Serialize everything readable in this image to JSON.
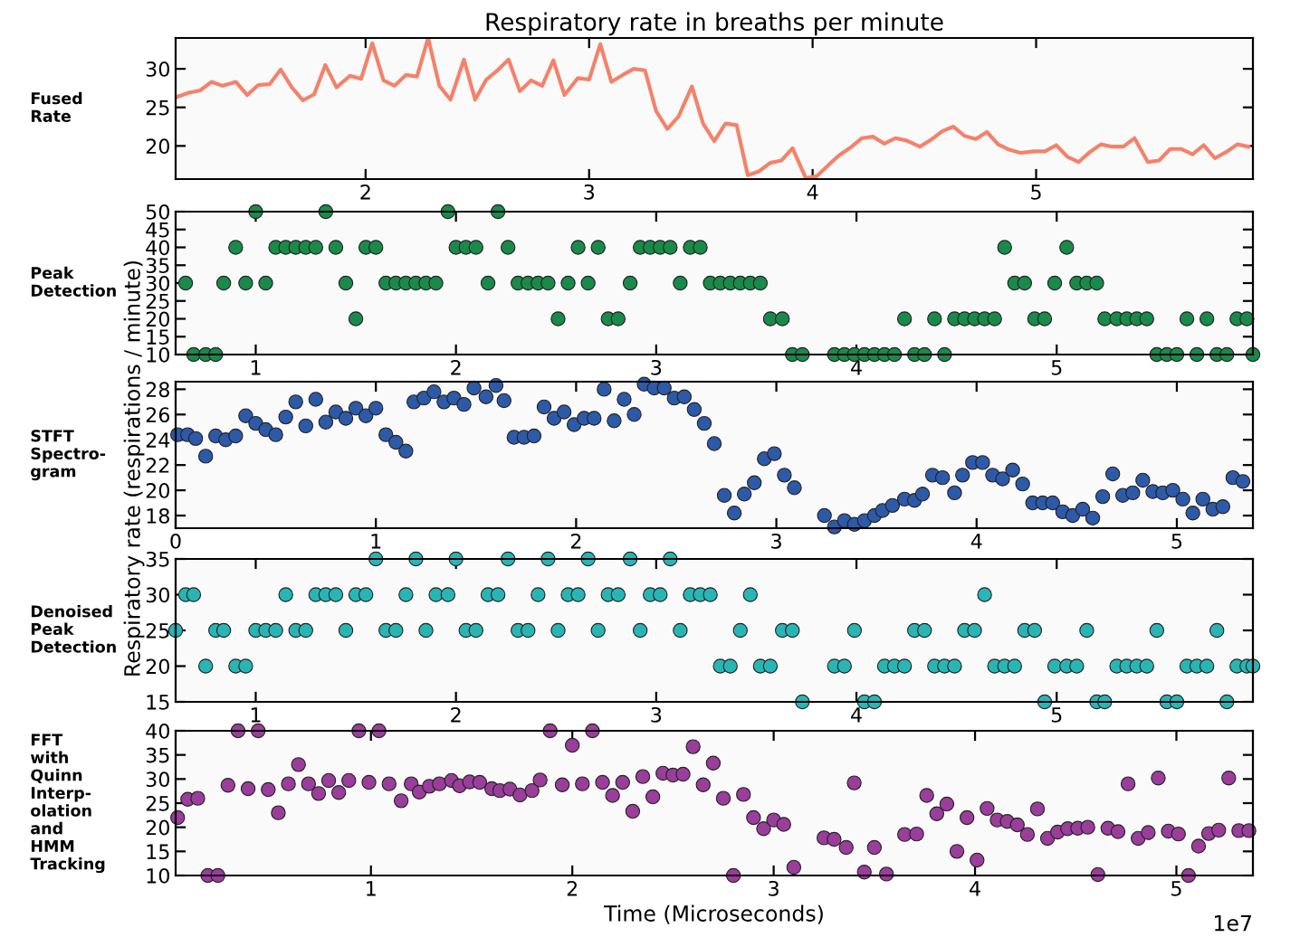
{
  "chart_data": [
    {
      "type": "line",
      "title": "Respiratory rate in breaths per minute",
      "annotations": [
        "Fused\nRate"
      ],
      "color": "#f4826b",
      "marker": "none",
      "line_style": "solid",
      "grid": false,
      "legend": false,
      "x": [
        1.16,
        1.21,
        1.26,
        1.31,
        1.36,
        1.42,
        1.47,
        1.52,
        1.57,
        1.62,
        1.67,
        1.72,
        1.77,
        1.82,
        1.87,
        1.93,
        1.98,
        2.03,
        2.08,
        2.13,
        2.18,
        2.23,
        2.28,
        2.33,
        2.38,
        2.44,
        2.49,
        2.54,
        2.59,
        2.64,
        2.69,
        2.74,
        2.79,
        2.84,
        2.89,
        2.95,
        3.0,
        3.05,
        3.1,
        3.15,
        3.2,
        3.25,
        3.3,
        3.35,
        3.4,
        3.46,
        3.51,
        3.56,
        3.61,
        3.66,
        3.71,
        3.76,
        3.81,
        3.86,
        3.91,
        3.97,
        4.02,
        4.07,
        4.12,
        4.17,
        4.22,
        4.27,
        4.32,
        4.37,
        4.42,
        4.48,
        4.53,
        4.58,
        4.63,
        4.68,
        4.73,
        4.78,
        4.83,
        4.88,
        4.93,
        4.99,
        5.04,
        5.09,
        5.14,
        5.19,
        5.24,
        5.29,
        5.34,
        5.39,
        5.44,
        5.5,
        5.55,
        5.6,
        5.65,
        5.7,
        5.75,
        5.8,
        5.85,
        5.9,
        5.95
      ],
      "values": [
        26.4,
        26.9,
        27.2,
        28.3,
        27.8,
        28.3,
        26.6,
        27.9,
        28.0,
        29.9,
        27.6,
        25.9,
        26.7,
        30.5,
        27.6,
        29.1,
        28.7,
        33.3,
        28.5,
        27.8,
        29.2,
        29.0,
        34.0,
        27.8,
        26.0,
        31.2,
        26.0,
        28.6,
        29.8,
        31.2,
        27.1,
        28.5,
        27.8,
        31.1,
        26.6,
        28.8,
        28.6,
        33.2,
        28.3,
        29.2,
        30.0,
        29.8,
        24.5,
        22.2,
        23.8,
        27.7,
        22.9,
        20.6,
        22.9,
        22.7,
        16.2,
        16.7,
        17.8,
        18.1,
        19.7,
        15.8,
        16.1,
        17.5,
        18.8,
        19.8,
        21.0,
        21.2,
        20.3,
        21.0,
        20.7,
        19.9,
        20.8,
        21.9,
        22.5,
        21.3,
        20.9,
        21.8,
        20.2,
        19.5,
        19.1,
        19.3,
        19.3,
        20.1,
        18.6,
        17.9,
        19.2,
        20.2,
        19.9,
        19.9,
        21.0,
        17.9,
        18.1,
        19.6,
        19.6,
        18.9,
        20.1,
        18.4,
        19.2,
        20.2,
        19.9
      ],
      "xlim": [
        1.15,
        5.97
      ],
      "ylim": [
        15.7,
        34
      ],
      "xticks": [
        2,
        3,
        4,
        5
      ],
      "yticks": [
        20,
        25,
        30
      ]
    },
    {
      "type": "scatter",
      "annotations": [
        "Peak\nDetection"
      ],
      "color": "#1a8a4a",
      "marker": "circle",
      "grid": false,
      "legend": false,
      "x": [
        0.65,
        0.69,
        0.75,
        0.8,
        0.84,
        0.9,
        0.95,
        1.0,
        1.05,
        1.1,
        1.15,
        1.2,
        1.25,
        1.3,
        1.35,
        1.4,
        1.45,
        1.5,
        1.55,
        1.6,
        1.65,
        1.7,
        1.75,
        1.8,
        1.85,
        1.9,
        1.96,
        2.0,
        2.05,
        2.1,
        2.16,
        2.21,
        2.26,
        2.31,
        2.36,
        2.41,
        2.46,
        2.51,
        2.56,
        2.61,
        2.66,
        2.71,
        2.76,
        2.81,
        2.87,
        2.92,
        2.97,
        3.02,
        3.07,
        3.12,
        3.17,
        3.22,
        3.27,
        3.32,
        3.37,
        3.42,
        3.47,
        3.52,
        3.57,
        3.63,
        3.68,
        3.73,
        3.89,
        3.94,
        3.99,
        4.04,
        4.09,
        4.14,
        4.19,
        4.24,
        4.29,
        4.34,
        4.39,
        4.44,
        4.49,
        4.54,
        4.59,
        4.64,
        4.69,
        4.74,
        4.79,
        4.84,
        4.89,
        4.94,
        4.99,
        5.05,
        5.1,
        5.15,
        5.2,
        5.24,
        5.3,
        5.35,
        5.4,
        5.45,
        5.5,
        5.55,
        5.6,
        5.65,
        5.7,
        5.75,
        5.8,
        5.85,
        5.9,
        5.95,
        5.98
      ],
      "values": [
        30,
        10,
        10,
        10,
        30,
        40,
        30,
        50,
        30,
        40,
        40,
        40,
        40,
        40,
        50,
        40,
        30,
        20,
        40,
        40,
        30,
        30,
        30,
        30,
        30,
        30,
        50,
        40,
        40,
        40,
        30,
        50,
        40,
        30,
        30,
        30,
        30,
        20,
        30,
        40,
        30,
        40,
        20,
        20,
        30,
        40,
        40,
        40,
        40,
        30,
        40,
        40,
        30,
        30,
        30,
        30,
        30,
        30,
        20,
        20,
        10,
        10,
        10,
        10,
        10,
        10,
        10,
        10,
        10,
        20,
        10,
        10,
        20,
        10,
        20,
        20,
        20,
        20,
        20,
        40,
        30,
        30,
        20,
        20,
        30,
        40,
        30,
        30,
        30,
        20,
        20,
        20,
        20,
        20,
        10,
        10,
        10,
        20,
        10,
        20,
        10,
        10,
        20,
        20,
        10
      ],
      "xlim": [
        0.6,
        5.98
      ],
      "ylim": [
        10,
        50
      ],
      "xticks": [
        1,
        2,
        3,
        4,
        5
      ],
      "yticks": [
        10,
        15,
        20,
        25,
        30,
        35,
        40,
        45,
        50
      ]
    },
    {
      "type": "scatter",
      "annotations": [
        "STFT\nSpectro-\ngram"
      ],
      "ylabel": "Respiratory rate (respirations / minute)",
      "color": "#2d5aa8",
      "marker": "circle",
      "grid": false,
      "legend": false,
      "x": [
        0.01,
        0.06,
        0.1,
        0.15,
        0.2,
        0.25,
        0.3,
        0.35,
        0.4,
        0.45,
        0.5,
        0.55,
        0.6,
        0.65,
        0.7,
        0.75,
        0.8,
        0.85,
        0.9,
        0.95,
        1.0,
        1.05,
        1.1,
        1.15,
        1.19,
        1.24,
        1.29,
        1.34,
        1.39,
        1.44,
        1.49,
        1.55,
        1.6,
        1.64,
        1.69,
        1.74,
        1.79,
        1.84,
        1.89,
        1.94,
        1.99,
        2.04,
        2.09,
        2.14,
        2.19,
        2.24,
        2.29,
        2.34,
        2.39,
        2.44,
        2.49,
        2.54,
        2.59,
        2.64,
        2.69,
        2.74,
        2.79,
        2.84,
        2.89,
        2.94,
        2.99,
        3.04,
        3.09,
        3.24,
        3.29,
        3.34,
        3.39,
        3.44,
        3.49,
        3.53,
        3.58,
        3.64,
        3.69,
        3.73,
        3.78,
        3.83,
        3.89,
        3.93,
        3.98,
        4.03,
        4.08,
        4.13,
        4.18,
        4.23,
        4.28,
        4.33,
        4.38,
        4.43,
        4.48,
        4.53,
        4.58,
        4.63,
        4.68,
        4.73,
        4.78,
        4.83,
        4.88,
        4.93,
        4.98,
        5.03,
        5.08,
        5.13,
        5.18,
        5.23,
        5.28,
        5.33
      ],
      "values": [
        24.4,
        24.4,
        24.1,
        22.7,
        24.3,
        24.0,
        24.3,
        25.9,
        25.3,
        24.8,
        24.4,
        25.8,
        27.0,
        25.1,
        27.2,
        25.4,
        26.2,
        25.7,
        26.5,
        25.9,
        26.5,
        24.4,
        23.8,
        23.1,
        27.0,
        27.3,
        27.8,
        27.0,
        27.3,
        26.8,
        28.1,
        27.4,
        28.3,
        27.1,
        24.2,
        24.2,
        24.3,
        26.6,
        25.7,
        26.2,
        25.2,
        25.7,
        25.7,
        28.0,
        25.5,
        27.2,
        26.0,
        28.4,
        28.1,
        28.1,
        27.3,
        27.4,
        26.4,
        25.3,
        23.7,
        19.6,
        18.2,
        19.7,
        20.6,
        22.5,
        22.9,
        21.2,
        20.2,
        18.0,
        17.1,
        17.6,
        17.3,
        17.6,
        18.0,
        18.4,
        18.8,
        19.3,
        19.2,
        19.7,
        21.2,
        21.0,
        19.8,
        21.2,
        22.2,
        22.2,
        21.2,
        20.9,
        21.6,
        20.5,
        19.0,
        19.0,
        19.0,
        18.3,
        18.0,
        18.5,
        17.8,
        19.5,
        21.3,
        19.6,
        19.8,
        20.8,
        19.9,
        19.8,
        20.0,
        19.3,
        18.2,
        19.3,
        18.5,
        18.7,
        21.0,
        20.7
      ],
      "xlim": [
        0,
        5.38
      ],
      "ylim": [
        17,
        28.6
      ],
      "xticks": [
        0,
        1,
        2,
        3,
        4,
        5
      ],
      "yticks": [
        18,
        20,
        22,
        24,
        26,
        28
      ]
    },
    {
      "type": "scatter",
      "annotations": [
        "Denoised\nPeak\nDetection"
      ],
      "color": "#2ab5b5",
      "marker": "circle",
      "grid": false,
      "legend": false,
      "x": [
        0.6,
        0.65,
        0.69,
        0.75,
        0.8,
        0.84,
        0.9,
        0.95,
        1.0,
        1.05,
        1.1,
        1.15,
        1.2,
        1.25,
        1.3,
        1.35,
        1.4,
        1.45,
        1.5,
        1.55,
        1.6,
        1.65,
        1.7,
        1.75,
        1.8,
        1.85,
        1.9,
        1.96,
        2.0,
        2.05,
        2.1,
        2.16,
        2.21,
        2.26,
        2.31,
        2.36,
        2.41,
        2.46,
        2.51,
        2.56,
        2.61,
        2.66,
        2.71,
        2.76,
        2.81,
        2.87,
        2.92,
        2.97,
        3.02,
        3.07,
        3.12,
        3.17,
        3.22,
        3.27,
        3.32,
        3.37,
        3.42,
        3.47,
        3.52,
        3.57,
        3.63,
        3.68,
        3.73,
        3.89,
        3.94,
        3.99,
        4.04,
        4.09,
        4.14,
        4.19,
        4.24,
        4.29,
        4.34,
        4.39,
        4.44,
        4.49,
        4.54,
        4.59,
        4.64,
        4.69,
        4.74,
        4.79,
        4.84,
        4.89,
        4.94,
        4.99,
        5.05,
        5.1,
        5.15,
        5.2,
        5.24,
        5.3,
        5.35,
        5.4,
        5.45,
        5.5,
        5.55,
        5.6,
        5.65,
        5.7,
        5.75,
        5.8,
        5.85,
        5.9,
        5.95,
        5.98
      ],
      "values": [
        25,
        30,
        30,
        20,
        25,
        25,
        20,
        20,
        25,
        25,
        25,
        30,
        25,
        25,
        30,
        30,
        30,
        25,
        30,
        30,
        35,
        25,
        25,
        30,
        35,
        25,
        30,
        30,
        35,
        25,
        25,
        30,
        30,
        35,
        25,
        25,
        30,
        35,
        25,
        30,
        30,
        35,
        25,
        30,
        30,
        35,
        25,
        30,
        30,
        35,
        25,
        30,
        30,
        30,
        20,
        20,
        25,
        30,
        20,
        20,
        25,
        25,
        15,
        20,
        20,
        25,
        15,
        15,
        20,
        20,
        20,
        25,
        25,
        20,
        20,
        20,
        25,
        25,
        30,
        20,
        20,
        20,
        25,
        25,
        15,
        20,
        20,
        20,
        25,
        15,
        15,
        20,
        20,
        20,
        20,
        25,
        15,
        15,
        20,
        20,
        20,
        25,
        15,
        20,
        20,
        20
      ],
      "xlim": [
        0.6,
        5.98
      ],
      "ylim": [
        15,
        35
      ],
      "xticks": [
        1,
        2,
        3,
        4,
        5
      ],
      "yticks": [
        15,
        20,
        25,
        30,
        35
      ]
    },
    {
      "type": "scatter",
      "annotations": [
        "FFT\nwith\nQuinn\nInterp-\nolation\nand\nHMM\nTracking",
        "1e7"
      ],
      "xlabel": "Time (Microseconds)",
      "color": "#9b3d9b",
      "marker": "circle",
      "grid": false,
      "legend": false,
      "x": [
        0.04,
        0.09,
        0.14,
        0.19,
        0.24,
        0.29,
        0.34,
        0.39,
        0.44,
        0.49,
        0.54,
        0.59,
        0.64,
        0.69,
        0.74,
        0.79,
        0.84,
        0.89,
        0.94,
        0.99,
        1.04,
        1.09,
        1.15,
        1.2,
        1.24,
        1.29,
        1.34,
        1.4,
        1.44,
        1.49,
        1.54,
        1.6,
        1.64,
        1.69,
        1.74,
        1.8,
        1.84,
        1.89,
        1.95,
        2.0,
        2.05,
        2.1,
        2.15,
        2.2,
        2.25,
        2.3,
        2.35,
        2.4,
        2.45,
        2.5,
        2.55,
        2.6,
        2.65,
        2.7,
        2.75,
        2.8,
        2.85,
        2.9,
        2.95,
        3.0,
        3.05,
        3.1,
        3.25,
        3.3,
        3.36,
        3.4,
        3.45,
        3.5,
        3.56,
        3.65,
        3.71,
        3.76,
        3.81,
        3.86,
        3.91,
        3.96,
        4.01,
        4.06,
        4.11,
        4.16,
        4.21,
        4.26,
        4.31,
        4.36,
        4.41,
        4.46,
        4.51,
        4.56,
        4.61,
        4.66,
        4.71,
        4.76,
        4.81,
        4.86,
        4.91,
        4.96,
        5.01,
        5.06,
        5.11,
        5.16,
        5.21,
        5.26,
        5.31,
        5.36
      ],
      "values": [
        22,
        25.8,
        26,
        10,
        10,
        28.7,
        40,
        28,
        40,
        27.8,
        23,
        29,
        33,
        29,
        27,
        29.7,
        27.2,
        29.7,
        40,
        29.3,
        40,
        29,
        25.5,
        29,
        27.3,
        28.5,
        29,
        29.7,
        28.6,
        29.4,
        29.3,
        28,
        27.6,
        27.9,
        26.7,
        27.6,
        29.8,
        40,
        28.8,
        37,
        29,
        40,
        29.3,
        26.6,
        29.3,
        23.3,
        30.5,
        26.3,
        31.2,
        30.8,
        31,
        36.7,
        28.8,
        33.3,
        26,
        10,
        26.8,
        22,
        19.7,
        21.5,
        20.6,
        11.7,
        17.8,
        17.5,
        15.8,
        29.2,
        10.7,
        15.8,
        10.3,
        18.5,
        18.6,
        26.6,
        22.8,
        24.8,
        15,
        22,
        13.2,
        23.9,
        21.5,
        21.2,
        20.5,
        18.5,
        23.8,
        17.7,
        19,
        19.7,
        19.8,
        20,
        10.2,
        19.8,
        19.1,
        29,
        17.7,
        18.9,
        30.2,
        19.2,
        18.6,
        10,
        16.1,
        18.7,
        19.4,
        30.2,
        19.3,
        19.3
      ],
      "xlim": [
        0.03,
        5.38
      ],
      "ylim": [
        10,
        40
      ],
      "xticks": [
        1,
        2,
        3,
        4,
        5
      ],
      "yticks": [
        10,
        15,
        20,
        25,
        30,
        35,
        40
      ]
    }
  ]
}
